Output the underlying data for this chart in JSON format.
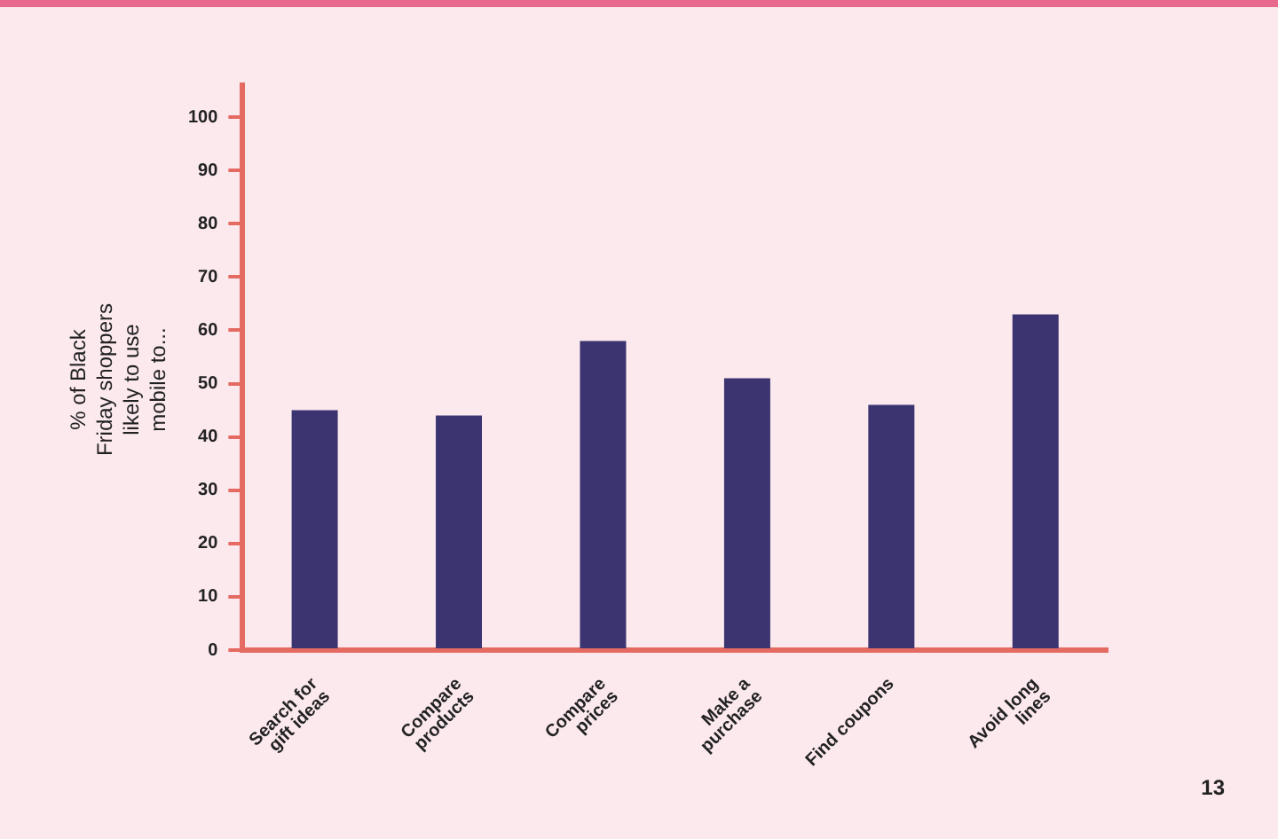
{
  "chart_data": {
    "type": "bar",
    "ylabel": "% of Black Friday shoppers likely to use mobile to...",
    "categories": [
      "Search for gift ideas",
      "Compare products",
      "Compare prices",
      "Make a purchase",
      "Find coupons",
      "Avoid long lines"
    ],
    "values": [
      45,
      44,
      58,
      51,
      46,
      63
    ],
    "color": "#3b3470",
    "ylim": [
      0,
      106
    ],
    "yticks": [
      0,
      10,
      20,
      30,
      40,
      50,
      60,
      70,
      80,
      90,
      100
    ],
    "grid": false,
    "legend": false,
    "annotations": [
      "13"
    ]
  }
}
